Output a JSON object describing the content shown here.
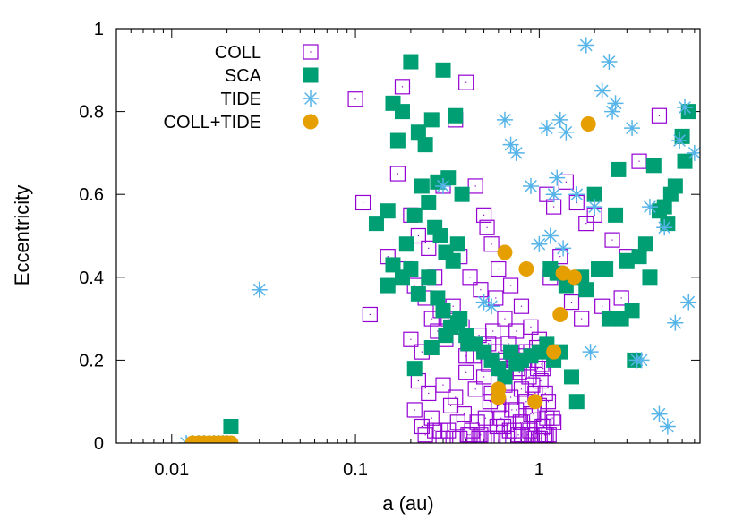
{
  "chart_data": {
    "type": "scatter",
    "xlabel": "a (au)",
    "ylabel": "Eccentricity",
    "xscale": "log",
    "xlim": [
      0.005,
      7.5
    ],
    "ylim": [
      0,
      1
    ],
    "x_ticks": [
      {
        "value": 0.01,
        "label": "0.01"
      },
      {
        "value": 0.1,
        "label": "0.1"
      },
      {
        "value": 1,
        "label": "1"
      }
    ],
    "y_ticks": [
      {
        "value": 0,
        "label": "0"
      },
      {
        "value": 0.2,
        "label": "0.2"
      },
      {
        "value": 0.4,
        "label": "0.4"
      },
      {
        "value": 0.6,
        "label": "0.6"
      },
      {
        "value": 0.8,
        "label": "0.8"
      },
      {
        "value": 1,
        "label": "1"
      }
    ],
    "grid": false,
    "legend_position": "top-left",
    "series": [
      {
        "name": "COLL",
        "marker": "open-square",
        "color": "#9400d3",
        "x": [
          0.1,
          0.12,
          0.17,
          0.18,
          0.2,
          0.22,
          0.25,
          0.3,
          0.35,
          0.4,
          0.45,
          0.5,
          0.55,
          0.6,
          0.7,
          0.8,
          0.9,
          1.0,
          1.1,
          1.2,
          1.4,
          1.6,
          1.8,
          2.0,
          2.5,
          3.0,
          3.5,
          4.5,
          0.11,
          0.15,
          0.19,
          0.21,
          0.24,
          0.27,
          0.29,
          0.32,
          0.37,
          0.42,
          0.48,
          0.52,
          0.58,
          0.65,
          0.75,
          0.85,
          0.95,
          1.05,
          1.15,
          1.3,
          1.5,
          1.7,
          2.2,
          2.8,
          0.2,
          0.23,
          0.26,
          0.28,
          0.31,
          0.34,
          0.38,
          0.41,
          0.44,
          0.47,
          0.5,
          0.53,
          0.56,
          0.6,
          0.63,
          0.68,
          0.72,
          0.78,
          0.82,
          0.88,
          0.92,
          0.98,
          1.02,
          1.08,
          1.12,
          0.22,
          0.25,
          0.3,
          0.35,
          0.4,
          0.45,
          0.5,
          0.55,
          0.6,
          0.65,
          0.7,
          0.75,
          0.8,
          0.85,
          0.9,
          0.95,
          1.0,
          1.1,
          1.2,
          0.21,
          0.26,
          0.33,
          0.39,
          0.46,
          0.54,
          0.62,
          0.71,
          0.81,
          0.93,
          1.06,
          1.18,
          0.23,
          0.29,
          0.36,
          0.43,
          0.51,
          0.59,
          0.69,
          0.79,
          0.91,
          1.04,
          0.24,
          0.32,
          0.41,
          0.52,
          0.64,
          0.77,
          0.89,
          1.01,
          1.13,
          0.27,
          0.37,
          0.48,
          0.6,
          0.73,
          0.87,
          0.99,
          1.09,
          0.3,
          0.42,
          0.55,
          0.67,
          0.8,
          0.94,
          1.07,
          0.34,
          0.47,
          0.61,
          0.76,
          0.9,
          1.03,
          0.4,
          0.53,
          0.66,
          0.83,
          0.97
        ],
        "y": [
          0.83,
          0.31,
          0.65,
          0.86,
          0.55,
          0.5,
          0.47,
          0.62,
          0.78,
          0.87,
          0.62,
          0.55,
          0.48,
          0.42,
          0.38,
          0.33,
          0.28,
          0.25,
          0.6,
          0.57,
          0.63,
          0.58,
          0.53,
          0.55,
          0.49,
          0.45,
          0.68,
          0.79,
          0.58,
          0.45,
          0.42,
          0.38,
          0.35,
          0.4,
          0.32,
          0.3,
          0.45,
          0.4,
          0.37,
          0.52,
          0.35,
          0.3,
          0.27,
          0.22,
          0.2,
          0.18,
          0.4,
          0.45,
          0.34,
          0.3,
          0.33,
          0.35,
          0.25,
          0.22,
          0.3,
          0.27,
          0.25,
          0.33,
          0.28,
          0.24,
          0.21,
          0.26,
          0.23,
          0.19,
          0.27,
          0.22,
          0.18,
          0.24,
          0.2,
          0.17,
          0.21,
          0.16,
          0.14,
          0.18,
          0.15,
          0.12,
          0.1,
          0.15,
          0.12,
          0.14,
          0.11,
          0.17,
          0.13,
          0.16,
          0.12,
          0.09,
          0.14,
          0.11,
          0.08,
          0.13,
          0.1,
          0.07,
          0.12,
          0.09,
          0.06,
          0.05,
          0.08,
          0.06,
          0.09,
          0.07,
          0.05,
          0.1,
          0.06,
          0.08,
          0.05,
          0.07,
          0.04,
          0.06,
          0.04,
          0.03,
          0.05,
          0.03,
          0.06,
          0.04,
          0.03,
          0.05,
          0.02,
          0.04,
          0.02,
          0.03,
          0.02,
          0.01,
          0.04,
          0.02,
          0.03,
          0.01,
          0.02,
          0.03,
          0.01,
          0.02,
          0.01,
          0.03,
          0.02,
          0.01,
          0.02,
          0.01,
          0.02,
          0.01,
          0.01,
          0.02,
          0.01,
          0.02,
          0.01,
          0.01,
          0.2,
          0.18,
          0.22,
          0.19,
          0.21,
          0.24,
          0.17,
          0.2,
          0.23
        ]
      },
      {
        "name": "SCA",
        "marker": "filled-square",
        "color": "#009e73",
        "x": [
          0.13,
          0.15,
          0.16,
          0.17,
          0.18,
          0.2,
          0.22,
          0.24,
          0.26,
          0.28,
          0.3,
          0.32,
          0.35,
          0.38,
          0.25,
          0.23,
          0.21,
          0.19,
          0.27,
          0.29,
          0.31,
          0.34,
          0.36,
          0.2,
          0.18,
          0.16,
          0.15,
          0.22,
          0.25,
          0.28,
          0.3,
          0.33,
          0.37,
          0.4,
          0.45,
          0.5,
          0.55,
          0.6,
          0.65,
          0.7,
          0.75,
          0.8,
          0.9,
          1.0,
          1.1,
          1.2,
          1.3,
          1.5,
          1.7,
          2.0,
          2.3,
          2.6,
          3.0,
          3.5,
          4.0,
          4.5,
          5.0,
          5.5,
          6.0,
          6.5,
          1.4,
          1.6,
          1.8,
          2.1,
          2.4,
          2.7,
          3.2,
          3.8,
          4.2,
          4.8,
          5.2,
          1.15,
          1.25,
          2.8,
          3.3,
          6.2,
          0.21,
          0.26,
          0.31,
          0.36,
          0.41,
          0.021
        ],
        "y": [
          0.53,
          0.56,
          0.82,
          0.73,
          0.8,
          0.92,
          0.75,
          0.72,
          0.78,
          0.63,
          0.9,
          0.64,
          0.79,
          0.6,
          0.58,
          0.62,
          0.55,
          0.48,
          0.52,
          0.5,
          0.46,
          0.44,
          0.48,
          0.42,
          0.4,
          0.43,
          0.38,
          0.36,
          0.4,
          0.35,
          0.32,
          0.28,
          0.3,
          0.26,
          0.24,
          0.22,
          0.2,
          0.18,
          0.16,
          0.22,
          0.19,
          0.2,
          0.21,
          0.22,
          0.24,
          0.2,
          0.22,
          0.16,
          0.4,
          0.6,
          0.42,
          0.55,
          0.44,
          0.45,
          0.4,
          0.56,
          0.53,
          0.62,
          0.74,
          0.8,
          0.38,
          0.1,
          0.37,
          0.42,
          0.3,
          0.66,
          0.32,
          0.48,
          0.67,
          0.57,
          0.6,
          0.42,
          0.41,
          0.3,
          0.2,
          0.68,
          0.18,
          0.23,
          0.26,
          0.29,
          0.24,
          0.04
        ]
      },
      {
        "name": "TIDE",
        "marker": "asterisk",
        "color": "#56b4e9",
        "x": [
          0.012,
          0.013,
          0.014,
          0.015,
          0.016,
          0.017,
          0.018,
          0.019,
          0.02,
          0.03,
          0.3,
          0.5,
          0.65,
          0.7,
          0.75,
          0.9,
          1.1,
          1.2,
          1.3,
          1.4,
          1.6,
          1.8,
          2.0,
          2.2,
          2.4,
          2.6,
          3.2,
          3.6,
          4.0,
          4.5,
          5.0,
          5.5,
          6.5,
          7.0,
          1.9,
          2.5,
          1.0,
          0.55,
          3.4,
          1.25,
          4.8,
          5.8,
          6.2,
          1.15,
          1.35
        ],
        "y": [
          0.0,
          0.0,
          0.0,
          0.0,
          0.0,
          0.0,
          0.0,
          0.0,
          0.0,
          0.37,
          0.62,
          0.34,
          0.78,
          0.72,
          0.7,
          0.62,
          0.76,
          0.6,
          0.78,
          0.75,
          0.6,
          0.96,
          0.57,
          0.85,
          0.92,
          0.82,
          0.76,
          0.2,
          0.57,
          0.07,
          0.04,
          0.29,
          0.34,
          0.7,
          0.22,
          0.8,
          0.48,
          0.33,
          0.2,
          0.64,
          0.52,
          0.73,
          0.81,
          0.5,
          0.47
        ]
      },
      {
        "name": "COLL+TIDE",
        "marker": "filled-circle",
        "color": "#e69f00",
        "x": [
          0.013,
          0.014,
          0.015,
          0.016,
          0.017,
          0.018,
          0.019,
          0.02,
          0.021,
          0.6,
          0.6,
          0.65,
          0.85,
          0.95,
          1.2,
          1.3,
          1.35,
          1.55,
          1.85
        ],
        "y": [
          0.0,
          0.0,
          0.0,
          0.0,
          0.0,
          0.0,
          0.0,
          0.0,
          0.0,
          0.11,
          0.13,
          0.46,
          0.42,
          0.1,
          0.22,
          0.31,
          0.41,
          0.4,
          0.77
        ]
      }
    ]
  }
}
